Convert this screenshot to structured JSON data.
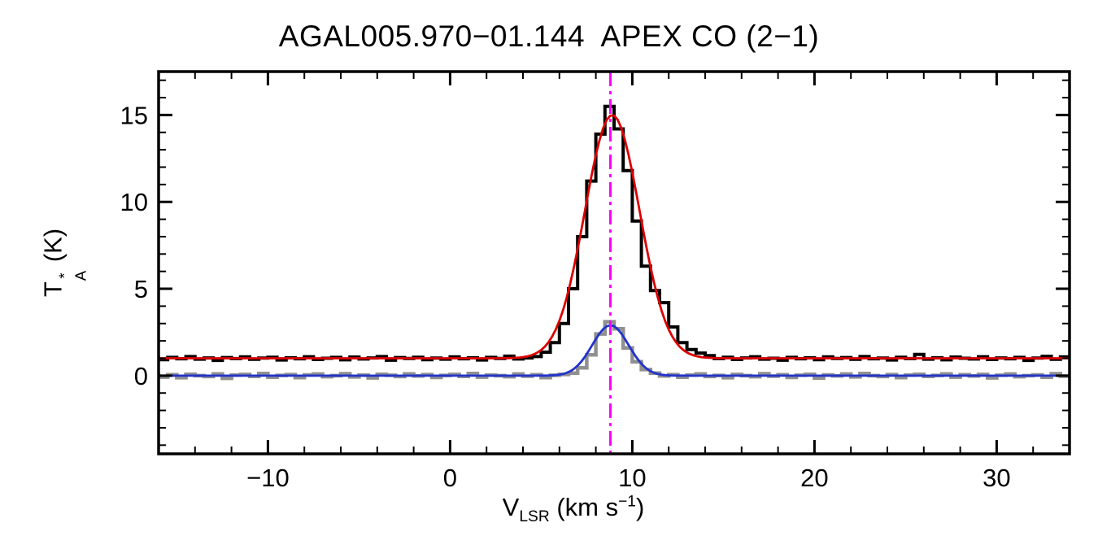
{
  "labels": {
    "y_main": "T",
    "y_sup": "*",
    "y_sub": "A",
    "y_unit": " (K)",
    "x_main": "V",
    "x_sub": "LSR",
    "x_mid": " (km s",
    "x_sup": "−1",
    "x_end": ")"
  },
  "chart_data": {
    "type": "line",
    "title": "AGAL005.970−01.144  APEX CO (2−1)",
    "xlabel": "V_LSR (km s^−1)",
    "ylabel": "T_A^* (K)",
    "xlim": [
      -16,
      34
    ],
    "ylim": [
      -4.5,
      17.5
    ],
    "grid": false,
    "legend": "none",
    "xticks": [
      {
        "v": -10,
        "label": "−10"
      },
      {
        "v": 0,
        "label": "0"
      },
      {
        "v": 10,
        "label": "10"
      },
      {
        "v": 20,
        "label": "20"
      },
      {
        "v": 30,
        "label": "30"
      }
    ],
    "yticks": [
      {
        "v": 0,
        "label": "0"
      },
      {
        "v": 5,
        "label": "5"
      },
      {
        "v": 10,
        "label": "10"
      },
      {
        "v": 15,
        "label": "15"
      }
    ],
    "x_minor_step": 2,
    "y_minor_step": 1,
    "vline": {
      "x": 8.8,
      "color": "#ff00ff",
      "style": "dash-dot"
    },
    "series": [
      {
        "name": "gray-spectrum",
        "style": "histogram",
        "color": "#909090",
        "line_width": 4.5,
        "x_start": -16.25,
        "dx": 0.5,
        "y": [
          0.02,
          -0.08,
          0.05,
          -0.12,
          0.08,
          0.0,
          -0.05,
          0.1,
          -0.15,
          0.03,
          0.07,
          -0.04,
          0.12,
          -0.09,
          0.01,
          0.06,
          -0.11,
          0.04,
          0.09,
          -0.06,
          0.0,
          0.11,
          -0.07,
          0.03,
          -0.13,
          0.08,
          0.02,
          -0.05,
          0.1,
          -0.02,
          0.06,
          -0.1,
          0.01,
          0.07,
          -0.04,
          0.12,
          -0.08,
          0.03,
          0.0,
          -0.06,
          0.09,
          -0.03,
          0.05,
          -0.11,
          0.02,
          0.07,
          0.15,
          0.45,
          1.2,
          2.4,
          3.1,
          2.7,
          1.6,
          0.8,
          0.35,
          0.15,
          -0.02,
          0.06,
          -0.09,
          0.03,
          0.1,
          -0.05,
          0.01,
          -0.12,
          0.07,
          0.0,
          -0.06,
          0.11,
          -0.03,
          0.05,
          -0.1,
          0.02,
          0.08,
          -0.14,
          0.04,
          -0.01,
          0.09,
          -0.07,
          0.12,
          0.0,
          -0.05,
          0.06,
          -0.11,
          0.03,
          0.08,
          -0.04,
          0.01,
          0.1,
          -0.08,
          0.05,
          -0.02,
          0.07,
          -0.13,
          0.02,
          0.09,
          -0.06,
          0.0,
          0.04,
          -0.09,
          0.11,
          -0.03
        ]
      },
      {
        "name": "black-spectrum",
        "style": "histogram",
        "color": "#000000",
        "line_width": 4,
        "x_start": -16.25,
        "dx": 0.5,
        "y": [
          1.0,
          0.92,
          1.05,
          0.97,
          1.1,
          0.95,
          1.02,
          0.88,
          1.04,
          0.98,
          1.08,
          0.94,
          1.01,
          1.06,
          0.9,
          1.03,
          0.97,
          1.09,
          0.93,
          1.0,
          1.05,
          0.91,
          1.07,
          0.96,
          1.02,
          1.1,
          0.89,
          1.04,
          0.99,
          1.06,
          0.92,
          1.01,
          0.95,
          1.08,
          0.97,
          1.03,
          0.9,
          1.05,
          0.99,
          1.12,
          0.96,
          1.02,
          1.1,
          1.35,
          1.9,
          3.0,
          5.0,
          8.0,
          11.2,
          13.9,
          15.5,
          14.2,
          11.8,
          8.9,
          6.3,
          4.9,
          4.2,
          2.8,
          1.9,
          1.5,
          1.3,
          1.15,
          0.98,
          1.06,
          0.93,
          1.02,
          1.09,
          0.95,
          1.0,
          0.89,
          1.05,
          0.97,
          1.03,
          0.92,
          1.08,
          0.99,
          1.04,
          0.94,
          1.1,
          0.97,
          1.01,
          0.9,
          1.06,
          0.98,
          1.22,
          0.95,
          1.03,
          0.91,
          1.07,
          1.0,
          0.96,
          1.09,
          0.93,
          1.02,
          0.97,
          1.05,
          0.88,
          1.01,
          1.11,
          0.94,
          1.08
        ]
      }
    ],
    "fits": [
      {
        "name": "red-gaussian-fit",
        "style": "gaussian",
        "color": "#dd0000",
        "line_width": 2.8,
        "baseline": 1.0,
        "amplitude": 14.0,
        "center": 8.9,
        "sigma": 1.5
      },
      {
        "name": "blue-gaussian-fit",
        "style": "gaussian",
        "color": "#2233cc",
        "line_width": 2.8,
        "baseline": 0.0,
        "amplitude": 2.9,
        "center": 8.8,
        "sigma": 1.0
      }
    ]
  }
}
